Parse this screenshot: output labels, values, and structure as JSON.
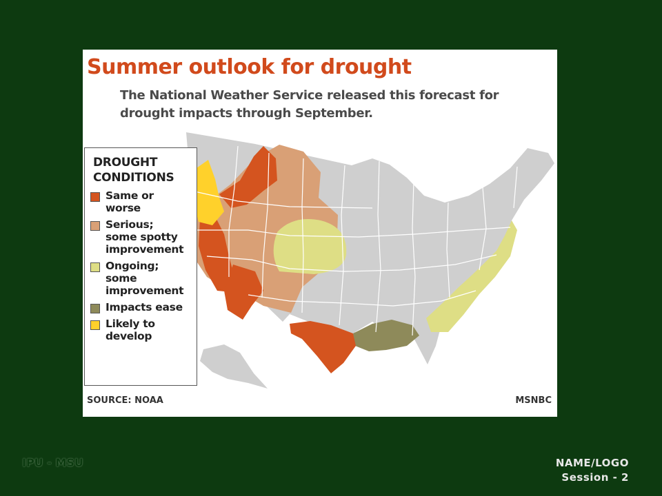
{
  "map": {
    "title": "Summer outlook for drought",
    "subtitle": "The National Weather Service released this forecast for drought impacts through September.",
    "legend": {
      "heading": "DROUGHT\nCONDITIONS",
      "items": [
        {
          "label": "Same or\nworse",
          "color": "#d4541f"
        },
        {
          "label": "Serious;\nsome spotty\nimprovement",
          "color": "#d9a076"
        },
        {
          "label": "Ongoing;\nsome\nimprovement",
          "color": "#dede85"
        },
        {
          "label": "Impacts ease",
          "color": "#8e8a5a"
        },
        {
          "label": "Likely to\ndevelop",
          "color": "#ffd12b"
        }
      ]
    },
    "source": "SOURCE: NOAA",
    "credit": "MSNBC",
    "land_color": "#cfcfcf",
    "border_color": "#ffffff"
  },
  "footer": {
    "left": "IPU - MSU",
    "logo": "NAME/LOGO",
    "session": "Session - 2"
  }
}
